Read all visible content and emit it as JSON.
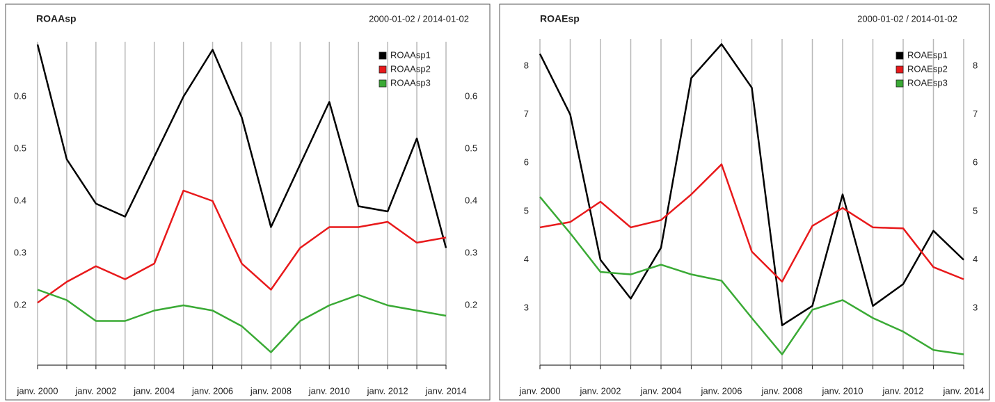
{
  "chart_data": [
    {
      "type": "line",
      "title": "ROAAsp",
      "subtitle": "2000-01-02 / 2014-01-02",
      "categories": [
        "janv. 2000",
        null,
        "janv. 2002",
        null,
        "janv. 2004",
        null,
        "janv. 2006",
        null,
        "janv. 2008",
        null,
        "janv. 2010",
        null,
        "janv. 2012",
        null,
        "janv. 2014"
      ],
      "series": [
        {
          "name": "ROAAsp1",
          "color": "#000000",
          "values": [
            0.7,
            0.48,
            0.395,
            0.37,
            0.485,
            0.6,
            0.69,
            0.56,
            0.35,
            0.47,
            0.59,
            0.39,
            0.38,
            0.52,
            0.31
          ]
        },
        {
          "name": "ROAAsp2",
          "color": "#e8191b",
          "values": [
            0.205,
            0.245,
            0.275,
            0.25,
            0.28,
            0.42,
            0.4,
            0.28,
            0.23,
            0.31,
            0.35,
            0.35,
            0.36,
            0.32,
            0.33
          ]
        },
        {
          "name": "ROAAsp3",
          "color": "#3aaa35",
          "values": [
            0.23,
            0.21,
            0.17,
            0.17,
            0.19,
            0.2,
            0.19,
            0.16,
            0.11,
            0.17,
            0.2,
            0.22,
            0.2,
            0.19,
            0.18
          ]
        }
      ],
      "ylim": [
        0.1,
        0.7
      ],
      "yticks": [
        0.2,
        0.3,
        0.4,
        0.5,
        0.6
      ],
      "grid": true,
      "legend": "top-right"
    },
    {
      "type": "line",
      "title": "ROAEsp",
      "subtitle": "2000-01-02 / 2014-01-02",
      "categories": [
        "janv. 2000",
        null,
        "janv. 2002",
        null,
        "janv. 2004",
        null,
        "janv. 2006",
        null,
        "janv. 2008",
        null,
        "janv. 2010",
        null,
        "janv. 2012",
        null,
        "janv. 2014"
      ],
      "series": [
        {
          "name": "ROAEsp1",
          "color": "#000000",
          "values": [
            8.25,
            7.0,
            4.0,
            3.2,
            4.25,
            7.75,
            8.45,
            7.55,
            2.65,
            3.05,
            5.35,
            3.05,
            3.5,
            4.6,
            4.0
          ]
        },
        {
          "name": "ROAEsp2",
          "color": "#e8191b",
          "values": [
            4.67,
            4.78,
            5.2,
            4.67,
            4.82,
            5.35,
            5.97,
            4.17,
            3.55,
            4.7,
            5.07,
            4.67,
            4.65,
            3.85,
            3.6
          ]
        },
        {
          "name": "ROAEsp3",
          "color": "#3aaa35",
          "values": [
            5.3,
            4.55,
            3.75,
            3.7,
            3.9,
            3.7,
            3.57,
            2.8,
            2.05,
            2.97,
            3.17,
            2.8,
            2.52,
            2.14,
            2.05
          ]
        }
      ],
      "ylim": [
        2.0,
        8.5
      ],
      "yticks": [
        3,
        4,
        5,
        6,
        7,
        8
      ],
      "grid": true,
      "legend": "top-right"
    }
  ]
}
